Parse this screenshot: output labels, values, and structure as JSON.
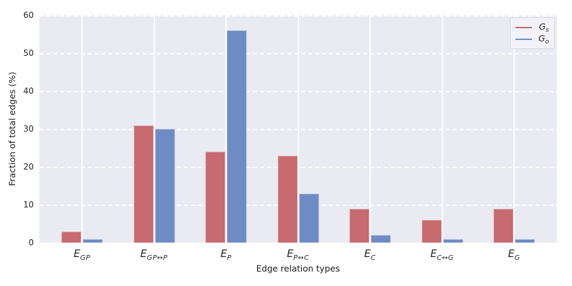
{
  "chart_data": {
    "type": "bar",
    "title": "",
    "xlabel": "Edge relation types",
    "ylabel": "Fraction of total edges (%)",
    "ylim": [
      0,
      60
    ],
    "yticks": [
      0,
      10,
      20,
      30,
      40,
      50,
      60
    ],
    "grid": true,
    "plot_background": "#eaeaf2",
    "gridline_color": "#ffffff",
    "legend_position": "upper right",
    "categories": [
      {
        "base": "E",
        "sub": "GP"
      },
      {
        "base": "E",
        "sub": "GP↔P"
      },
      {
        "base": "E",
        "sub": "P"
      },
      {
        "base": "E",
        "sub": "P↔C"
      },
      {
        "base": "E",
        "sub": "C"
      },
      {
        "base": "E",
        "sub": "C↔G"
      },
      {
        "base": "E",
        "sub": "G"
      }
    ],
    "series": [
      {
        "name_base": "G",
        "name_sub": "s",
        "color": "#c66b70",
        "values": [
          3,
          31,
          24,
          23,
          9,
          6,
          9
        ]
      },
      {
        "name_base": "G",
        "name_sub": "o",
        "color": "#6e8cc3",
        "values": [
          1,
          30,
          56,
          13,
          2,
          1,
          1
        ]
      }
    ]
  }
}
